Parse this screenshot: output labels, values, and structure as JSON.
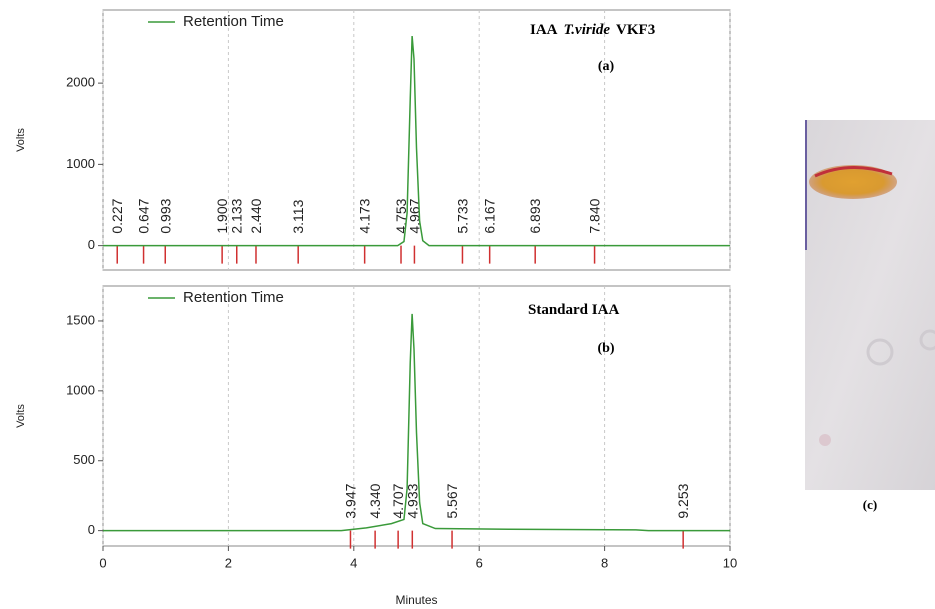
{
  "chart_data": [
    {
      "type": "line",
      "title_parts": [
        "IAA",
        "T.viride",
        "VKF3"
      ],
      "panel": "(a)",
      "ylabel": "Volts",
      "legend": "upper left",
      "grid": true,
      "xlim": [
        0,
        10
      ],
      "xticks": [
        0,
        2,
        4,
        6,
        8,
        10
      ],
      "ylim": [
        -300,
        2900
      ],
      "yticks": [
        0,
        1000,
        2000
      ],
      "x": [
        0,
        4.7,
        4.8,
        4.85,
        4.9,
        4.93,
        4.96,
        5.0,
        5.05,
        5.1,
        5.2,
        10
      ],
      "series": [
        {
          "name": "Retention Time",
          "color": "#3a9a3a",
          "values": [
            0,
            0,
            50,
            400,
            1800,
            2580,
            2300,
            1200,
            300,
            60,
            0,
            0
          ]
        }
      ],
      "annotations": [
        {
          "value": 0.227,
          "label": "0.227"
        },
        {
          "value": 0.647,
          "label": "0.647"
        },
        {
          "value": 0.993,
          "label": "0.993"
        },
        {
          "value": 1.9,
          "label": "1.900"
        },
        {
          "value": 2.133,
          "label": "2.133"
        },
        {
          "value": 2.44,
          "label": "2.440"
        },
        {
          "value": 3.113,
          "label": "3.113"
        },
        {
          "value": 4.173,
          "label": "4.173"
        },
        {
          "value": 4.753,
          "label": "4.753"
        },
        {
          "value": 4.967,
          "label": "4.967"
        },
        {
          "value": 5.733,
          "label": "5.733"
        },
        {
          "value": 6.167,
          "label": "6.167"
        },
        {
          "value": 6.893,
          "label": "6.893"
        },
        {
          "value": 7.84,
          "label": "7.840"
        }
      ]
    },
    {
      "type": "line",
      "title_parts": [
        "Standard IAA"
      ],
      "panel": "(b)",
      "ylabel": "Volts",
      "xlabel": "Minutes",
      "legend": "upper left",
      "grid": true,
      "xlim": [
        0,
        10
      ],
      "xticks": [
        0,
        2,
        4,
        6,
        8,
        10
      ],
      "ylim": [
        -110,
        1750
      ],
      "yticks": [
        0,
        500,
        1000,
        1500
      ],
      "x": [
        0,
        3.8,
        4.2,
        4.6,
        4.8,
        4.85,
        4.9,
        4.93,
        4.96,
        5.0,
        5.05,
        5.1,
        5.3,
        6.5,
        8.5,
        8.7,
        10
      ],
      "series": [
        {
          "name": "Retention Time",
          "color": "#3a9a3a",
          "values": [
            0,
            0,
            20,
            50,
            80,
            300,
            1200,
            1550,
            1300,
            700,
            200,
            50,
            15,
            10,
            5,
            0,
            0
          ]
        }
      ],
      "annotations": [
        {
          "value": 3.947,
          "label": "3.947"
        },
        {
          "value": 4.34,
          "label": "4.340"
        },
        {
          "value": 4.707,
          "label": "4.707"
        },
        {
          "value": 4.933,
          "label": "4.933"
        },
        {
          "value": 5.567,
          "label": "5.567"
        },
        {
          "value": 9.253,
          "label": "9.253"
        }
      ]
    }
  ],
  "photo_label": "(c)"
}
